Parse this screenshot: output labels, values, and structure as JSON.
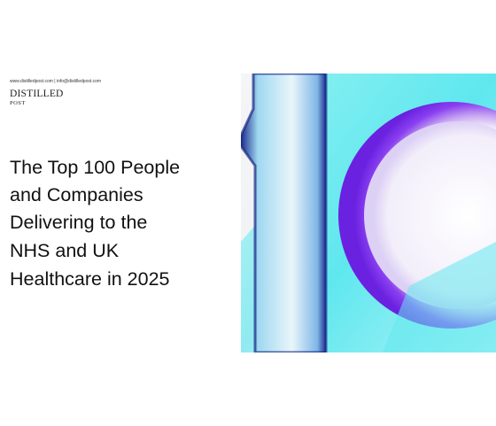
{
  "header": {
    "contact": "www.distilledpost.com | info@distilledpost.com",
    "brand": "DISTILLED",
    "brand_sub": "POST"
  },
  "title": {
    "lines": [
      "The Top 100 People",
      "and Companies",
      "Delivering to the",
      "NHS and UK",
      "Healthcare in 2025"
    ]
  }
}
